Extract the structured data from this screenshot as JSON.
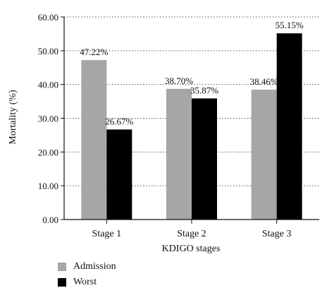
{
  "chart_data": {
    "type": "bar",
    "xlabel": "KDIGO stages",
    "ylabel": "Mortality (%)",
    "categories": [
      "Stage 1",
      "Stage 2",
      "Stage 3"
    ],
    "ylim": [
      0,
      60
    ],
    "yticks": [
      "0.00",
      "10.00",
      "20.00",
      "30.00",
      "40.00",
      "50.00",
      "60.00"
    ],
    "ytick_values": [
      0,
      10,
      20,
      30,
      40,
      50,
      60
    ],
    "grid": "horizontal dotted",
    "legend_position": "bottom-left",
    "series": [
      {
        "name": "Admission",
        "color": "#a6a6a6",
        "values": [
          47.22,
          38.7,
          38.46
        ],
        "labels": [
          "47.22%",
          "38.70%",
          "38.46%"
        ]
      },
      {
        "name": "Worst",
        "color": "#000000",
        "values": [
          26.67,
          35.87,
          55.15
        ],
        "labels": [
          "26.67%",
          "35.87%",
          "55.15%"
        ]
      }
    ]
  }
}
